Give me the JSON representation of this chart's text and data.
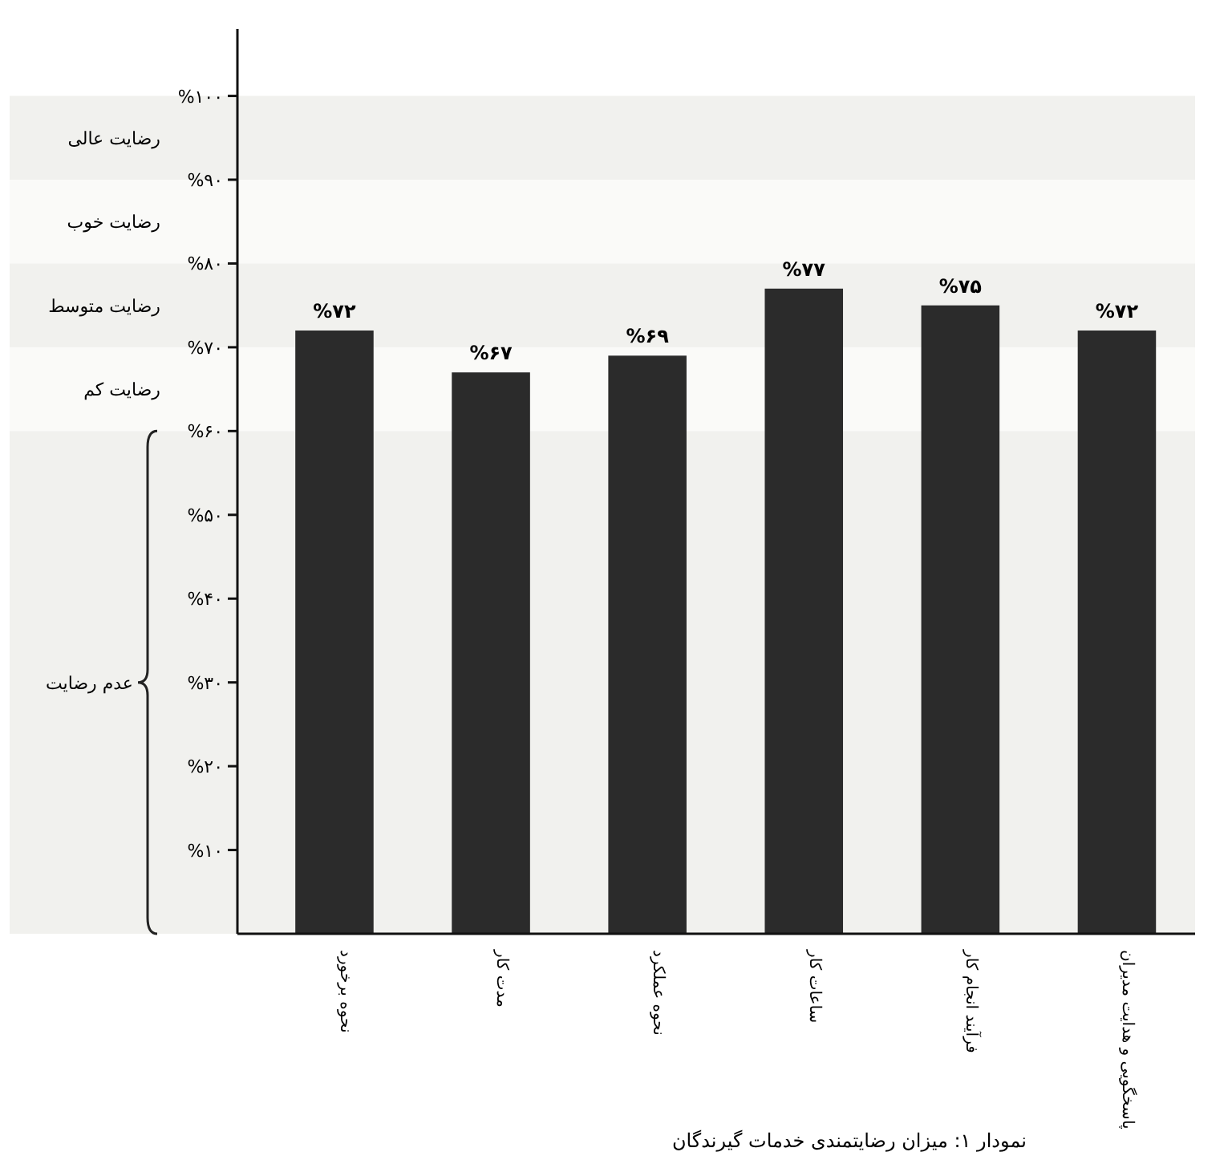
{
  "chart_data": {
    "type": "bar",
    "categories": [
      "نحوه برخورد",
      "مدت کار",
      "نحوه عملکرد",
      "ساعات کار",
      "فرآیند انجام کار",
      "پاسخگویی و هدایت مدیران"
    ],
    "values": [
      72,
      67,
      69,
      77,
      75,
      72
    ],
    "value_labels": [
      "%۷۲",
      "%۶۷",
      "%۶۹",
      "%۷۷",
      "%۷۵",
      "%۷۲"
    ],
    "color": "#2b2b2b",
    "ylim": [
      0,
      108
    ],
    "yticks": [
      {
        "value": 10,
        "label": "%۱۰"
      },
      {
        "value": 20,
        "label": "%۲۰"
      },
      {
        "value": 30,
        "label": "%۳۰"
      },
      {
        "value": 40,
        "label": "%۴۰"
      },
      {
        "value": 50,
        "label": "%۵۰"
      },
      {
        "value": 60,
        "label": "%۶۰"
      },
      {
        "value": 70,
        "label": "%۷۰"
      },
      {
        "value": 80,
        "label": "%۸۰"
      },
      {
        "value": 90,
        "label": "%۹۰"
      },
      {
        "value": 100,
        "label": "%۱۰۰"
      }
    ],
    "bands": [
      {
        "axis": "y",
        "from": 90,
        "to": 100,
        "label": "رضایت عالی",
        "color": "#f1f1ee"
      },
      {
        "axis": "y",
        "from": 80,
        "to": 90,
        "label": "رضایت خوب",
        "color": "#fafaf8"
      },
      {
        "axis": "y",
        "from": 70,
        "to": 80,
        "label": "رضایت متوسط",
        "color": "#f1f1ee"
      },
      {
        "axis": "y",
        "from": 60,
        "to": 70,
        "label": "رضایت کم",
        "color": "#fafaf8"
      },
      {
        "axis": "y",
        "from": 0,
        "to": 60,
        "label": "عدم رضایت",
        "color": "#f1f1ee"
      }
    ],
    "annotations": [
      "نمودار ۱: میزان رضایتمندی خدمات گیرندگان"
    ]
  }
}
